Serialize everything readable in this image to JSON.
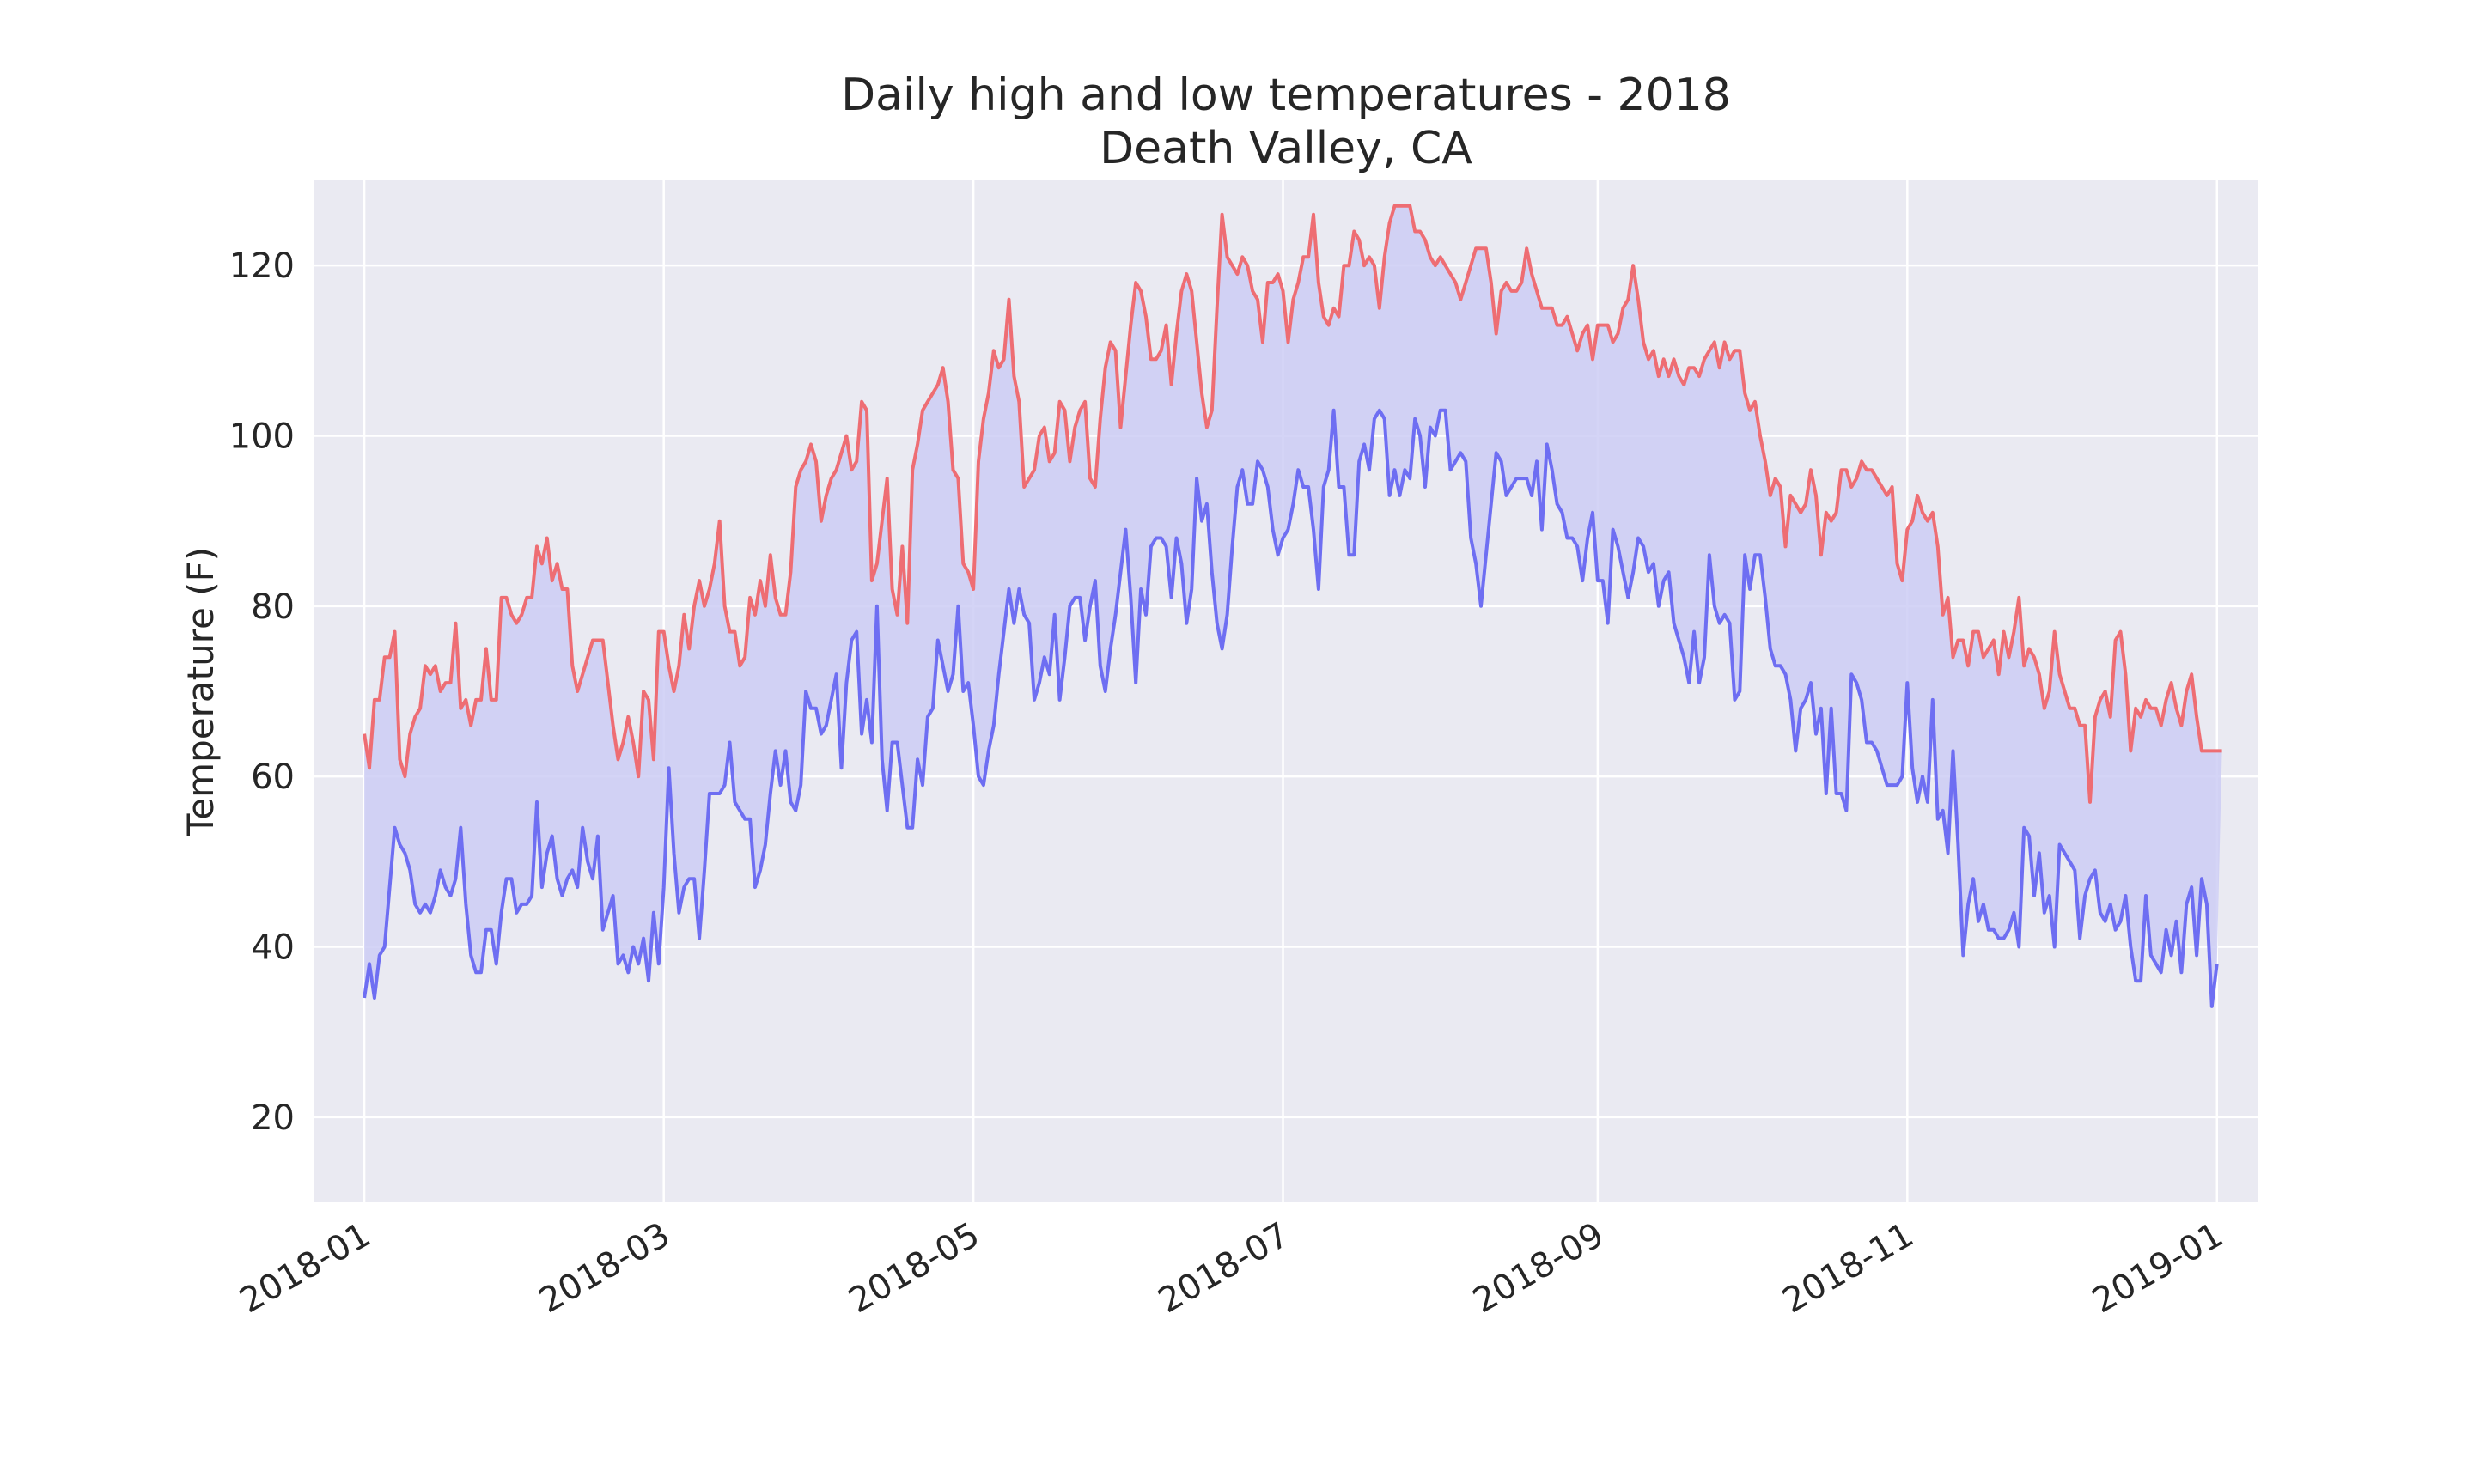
{
  "colors": {
    "high": "#ee6d73",
    "low": "#6e6ef2",
    "fill": "#ccccf5",
    "plot_background": "#eaeaf2",
    "grid": "#ffffff",
    "text": "#262626"
  },
  "chart_data": {
    "type": "line",
    "title": "Daily high and low temperatures - 2018",
    "subtitle": "Death Valley, CA",
    "xlabel": "",
    "ylabel": "Temperature (F)",
    "xlim": [
      "2017-12-22",
      "2019-01-09"
    ],
    "ylim": [
      10,
      130
    ],
    "grid": true,
    "fill_between": true,
    "x_ticks": [
      "2018-01",
      "2018-03",
      "2018-05",
      "2018-07",
      "2018-09",
      "2018-11",
      "2019-01"
    ],
    "y_ticks": [
      20,
      40,
      60,
      80,
      100,
      120
    ],
    "x_start": "2018-01-01",
    "series": [
      {
        "name": "",
        "values": [
          65,
          61,
          69,
          69,
          74,
          74,
          77,
          62,
          60,
          65,
          67,
          68,
          73,
          72,
          73,
          70,
          71,
          71,
          78,
          68,
          69,
          66,
          69,
          69,
          75,
          69,
          69,
          81,
          81,
          79,
          78,
          79,
          81,
          81,
          87,
          85,
          88,
          83,
          85,
          82,
          82,
          73,
          70,
          72,
          74,
          76,
          76,
          76,
          71,
          66,
          62,
          64,
          67,
          64,
          60,
          70,
          69,
          62,
          77,
          77,
          73,
          70,
          73,
          79,
          75,
          80,
          83,
          80,
          82,
          85,
          90,
          80,
          77,
          77,
          73,
          74,
          81,
          79,
          83,
          80,
          86,
          81,
          79,
          79,
          84,
          94,
          96,
          97,
          99,
          97,
          90,
          93,
          95,
          96,
          98,
          100,
          96,
          97,
          104,
          103,
          83,
          85,
          90,
          95,
          82,
          79,
          87,
          78,
          96,
          99,
          103,
          104,
          105,
          106,
          108,
          104,
          96,
          95,
          85,
          84,
          82,
          97,
          102,
          105,
          110,
          108,
          109,
          116,
          107,
          104,
          94,
          95,
          96,
          100,
          101,
          97,
          98,
          104,
          103,
          97,
          101,
          103,
          104,
          95,
          94,
          102,
          108,
          111,
          110,
          101,
          107,
          113,
          118,
          117,
          114,
          109,
          109,
          110,
          113,
          106,
          112,
          117,
          119,
          117,
          111,
          105,
          101,
          103,
          115,
          126,
          121,
          120,
          119,
          121,
          120,
          117,
          116,
          111,
          118,
          118,
          119,
          117,
          111,
          116,
          118,
          121,
          121,
          126,
          118,
          114,
          113,
          115,
          114,
          120,
          120,
          124,
          123,
          120,
          121,
          120,
          115,
          121,
          125,
          127,
          127,
          127,
          127,
          124,
          124,
          123,
          121,
          120,
          121,
          120,
          119,
          118,
          116,
          118,
          120,
          122,
          122,
          122,
          118,
          112,
          117,
          118,
          117,
          117,
          118,
          122,
          119,
          117,
          115,
          115,
          115,
          113,
          113,
          114,
          112,
          110,
          112,
          113,
          109,
          113,
          113,
          113,
          111,
          112,
          115,
          116,
          120,
          116,
          111,
          109,
          110,
          107,
          109,
          107,
          109,
          107,
          106,
          108,
          108,
          107,
          109,
          110,
          111,
          108,
          111,
          109,
          110,
          110,
          105,
          103,
          104,
          100,
          97,
          93,
          95,
          94,
          87,
          93,
          92,
          91,
          92,
          96,
          93,
          86,
          91,
          90,
          91,
          96,
          96,
          94,
          95,
          97,
          96,
          96,
          95,
          94,
          93,
          94,
          85,
          83,
          89,
          90,
          93,
          91,
          90,
          91,
          87,
          79,
          81,
          74,
          76,
          76,
          73,
          77,
          77,
          74,
          75,
          76,
          72,
          77,
          74,
          77,
          81,
          73,
          75,
          74,
          72,
          68,
          70,
          77,
          72,
          70,
          68,
          68,
          66,
          66,
          57,
          67,
          69,
          70,
          67,
          76,
          77,
          72,
          63,
          68,
          67,
          69,
          68,
          68,
          66,
          69,
          71,
          68,
          66,
          70,
          72,
          67,
          63,
          63,
          63,
          63,
          63
        ]
      },
      {
        "name": "",
        "values": [
          34,
          38,
          34,
          39,
          40,
          47,
          54,
          52,
          51,
          49,
          45,
          44,
          45,
          44,
          46,
          49,
          47,
          46,
          48,
          54,
          45,
          39,
          37,
          37,
          42,
          42,
          38,
          44,
          48,
          48,
          44,
          45,
          45,
          46,
          57,
          47,
          51,
          53,
          48,
          46,
          48,
          49,
          47,
          54,
          50,
          48,
          53,
          42,
          44,
          46,
          38,
          39,
          37,
          40,
          38,
          41,
          36,
          44,
          38,
          47,
          61,
          51,
          44,
          47,
          48,
          48,
          41,
          49,
          58,
          58,
          58,
          59,
          64,
          57,
          56,
          55,
          55,
          47,
          49,
          52,
          58,
          63,
          59,
          63,
          57,
          56,
          59,
          70,
          68,
          68,
          65,
          66,
          69,
          72,
          61,
          71,
          76,
          77,
          65,
          69,
          64,
          80,
          62,
          56,
          64,
          64,
          59,
          54,
          54,
          62,
          59,
          67,
          68,
          76,
          73,
          70,
          72,
          80,
          70,
          71,
          66,
          60,
          59,
          63,
          66,
          72,
          77,
          82,
          78,
          82,
          79,
          78,
          69,
          71,
          74,
          72,
          79,
          69,
          74,
          80,
          81,
          81,
          76,
          80,
          83,
          73,
          70,
          75,
          79,
          84,
          89,
          81,
          71,
          82,
          79,
          87,
          88,
          88,
          87,
          81,
          88,
          85,
          78,
          82,
          95,
          90,
          92,
          84,
          78,
          75,
          79,
          87,
          94,
          96,
          92,
          92,
          97,
          96,
          94,
          89,
          86,
          88,
          89,
          92,
          96,
          94,
          94,
          89,
          82,
          94,
          96,
          103,
          94,
          94,
          86,
          86,
          97,
          99,
          96,
          102,
          103,
          102,
          93,
          96,
          93,
          96,
          95,
          102,
          100,
          94,
          101,
          100,
          103,
          103,
          96,
          97,
          98,
          97,
          88,
          85,
          80,
          86,
          92,
          98,
          97,
          93,
          94,
          95,
          95,
          95,
          93,
          97,
          89,
          99,
          96,
          92,
          91,
          88,
          88,
          87,
          83,
          88,
          91,
          83,
          83,
          78,
          89,
          87,
          84,
          81,
          84,
          88,
          87,
          84,
          85,
          80,
          83,
          84,
          78,
          76,
          74,
          71,
          77,
          71,
          74,
          86,
          80,
          78,
          79,
          78,
          69,
          70,
          86,
          82,
          86,
          86,
          81,
          75,
          73,
          73,
          72,
          69,
          63,
          68,
          69,
          71,
          65,
          68,
          58,
          68,
          58,
          58,
          56,
          72,
          71,
          69,
          64,
          64,
          63,
          61,
          59,
          59,
          59,
          60,
          71,
          61,
          57,
          60,
          57,
          69,
          55,
          56,
          51,
          63,
          52,
          39,
          45,
          48,
          43,
          45,
          42,
          42,
          41,
          41,
          42,
          44,
          40,
          54,
          53,
          46,
          51,
          44,
          46,
          40,
          52,
          51,
          50,
          49,
          41,
          46,
          48,
          49,
          44,
          43,
          45,
          42,
          43,
          46,
          40,
          36,
          36,
          46,
          39,
          38,
          37,
          42,
          39,
          43,
          37,
          45,
          47,
          39,
          48,
          45,
          33,
          38
        ]
      }
    ]
  }
}
